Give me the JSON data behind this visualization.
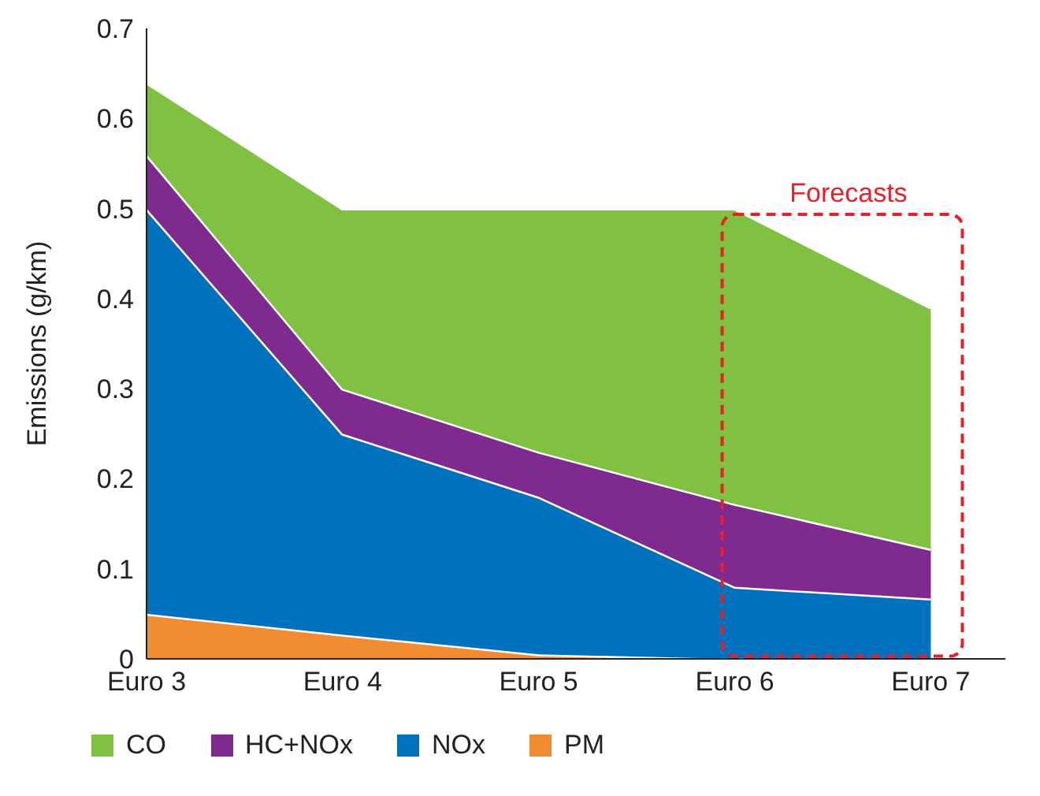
{
  "chart_data": {
    "type": "area",
    "stacked": true,
    "ylabel": "Emissions (g/km)",
    "categories": [
      "Euro 3",
      "Euro 4",
      "Euro 5",
      "Euro 6",
      "Euro 7"
    ],
    "series": [
      {
        "name": "PM",
        "color": "#f28c33",
        "values": [
          0.05,
          0.027,
          0.005,
          0,
          0
        ]
      },
      {
        "name": "NOx",
        "color": "#0071bc",
        "values": [
          0.45,
          0.223,
          0.175,
          0.08,
          0.067
        ]
      },
      {
        "name": "HC+NOx",
        "color": "#7f2a8f",
        "values": [
          0.06,
          0.05,
          0.05,
          0.092,
          0.055
        ]
      },
      {
        "name": "CO",
        "color": "#80c142",
        "values": [
          0.08,
          0.2,
          0.27,
          0.328,
          0.268
        ]
      }
    ],
    "ylim": [
      0,
      0.7
    ],
    "yticks": [
      0,
      0.1,
      0.2,
      0.3,
      0.4,
      0.5,
      0.6,
      0.7
    ],
    "grid": false,
    "legend": "bottom",
    "annotations": [
      "Forecasts"
    ]
  }
}
